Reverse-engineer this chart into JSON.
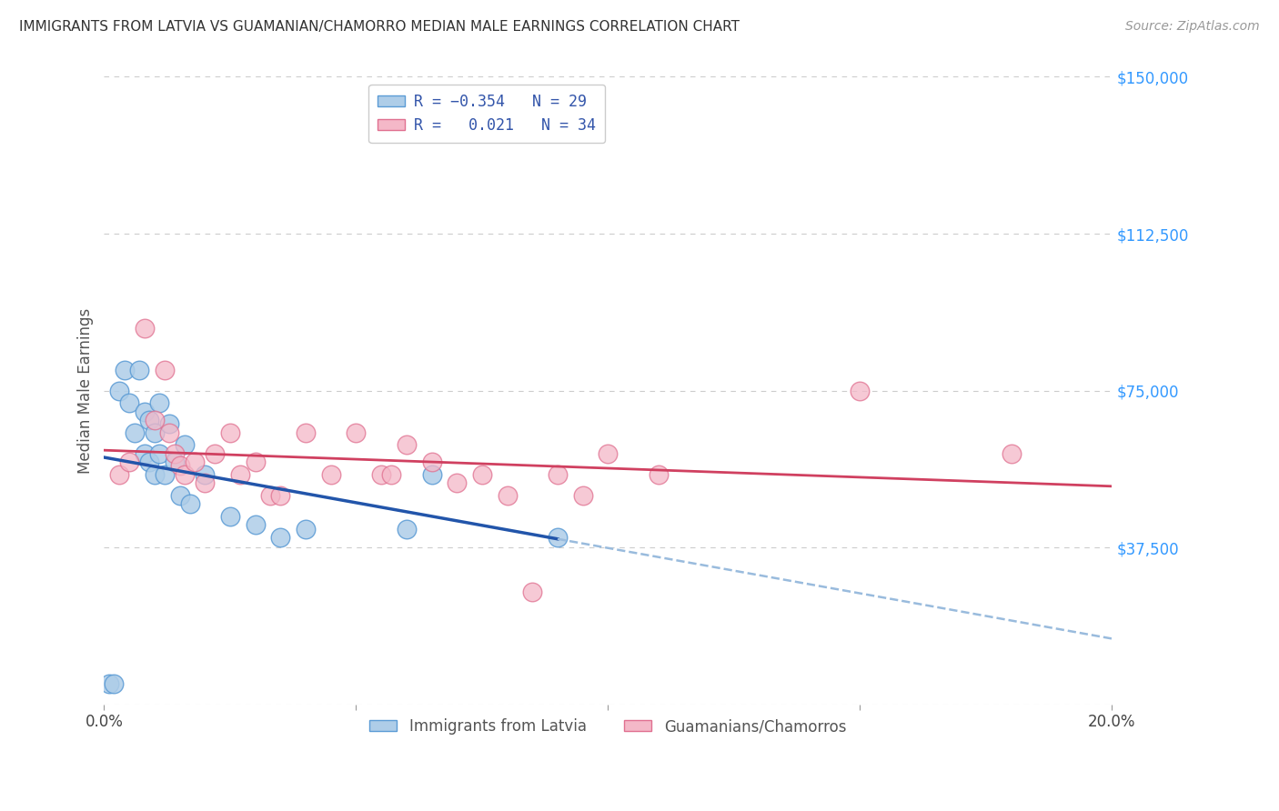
{
  "title": "IMMIGRANTS FROM LATVIA VS GUAMANIAN/CHAMORRO MEDIAN MALE EARNINGS CORRELATION CHART",
  "source": "Source: ZipAtlas.com",
  "ylabel": "Median Male Earnings",
  "xlim": [
    0.0,
    0.2
  ],
  "ylim": [
    0,
    150000
  ],
  "yticks": [
    0,
    37500,
    75000,
    112500,
    150000
  ],
  "xticks": [
    0.0,
    0.05,
    0.1,
    0.15,
    0.2
  ],
  "xtick_labels": [
    "0.0%",
    "",
    "",
    "",
    "20.0%"
  ],
  "blue_color_face": "#aecde8",
  "blue_color_edge": "#5b9bd5",
  "pink_color_face": "#f4b8c8",
  "pink_color_edge": "#e07090",
  "blue_line_color": "#2255aa",
  "pink_line_color": "#d04060",
  "blue_dash_color": "#99bbdd",
  "blue_scatter_x": [
    0.001,
    0.002,
    0.003,
    0.004,
    0.005,
    0.006,
    0.007,
    0.008,
    0.008,
    0.009,
    0.009,
    0.01,
    0.01,
    0.011,
    0.011,
    0.012,
    0.013,
    0.014,
    0.015,
    0.016,
    0.017,
    0.02,
    0.025,
    0.03,
    0.035,
    0.04,
    0.06,
    0.065,
    0.09
  ],
  "blue_scatter_y": [
    5000,
    5000,
    75000,
    80000,
    72000,
    65000,
    80000,
    70000,
    60000,
    68000,
    58000,
    65000,
    55000,
    72000,
    60000,
    55000,
    67000,
    58000,
    50000,
    62000,
    48000,
    55000,
    45000,
    43000,
    40000,
    42000,
    42000,
    55000,
    40000
  ],
  "pink_scatter_x": [
    0.003,
    0.005,
    0.008,
    0.01,
    0.012,
    0.013,
    0.014,
    0.015,
    0.016,
    0.018,
    0.02,
    0.022,
    0.025,
    0.027,
    0.03,
    0.033,
    0.035,
    0.04,
    0.045,
    0.05,
    0.055,
    0.057,
    0.06,
    0.065,
    0.07,
    0.075,
    0.08,
    0.085,
    0.09,
    0.095,
    0.1,
    0.11,
    0.15,
    0.18
  ],
  "pink_scatter_y": [
    55000,
    58000,
    90000,
    68000,
    80000,
    65000,
    60000,
    57000,
    55000,
    58000,
    53000,
    60000,
    65000,
    55000,
    58000,
    50000,
    50000,
    65000,
    55000,
    65000,
    55000,
    55000,
    62000,
    58000,
    53000,
    55000,
    50000,
    27000,
    55000,
    50000,
    60000,
    55000,
    75000,
    60000
  ],
  "background_color": "#ffffff",
  "grid_color": "#cccccc"
}
